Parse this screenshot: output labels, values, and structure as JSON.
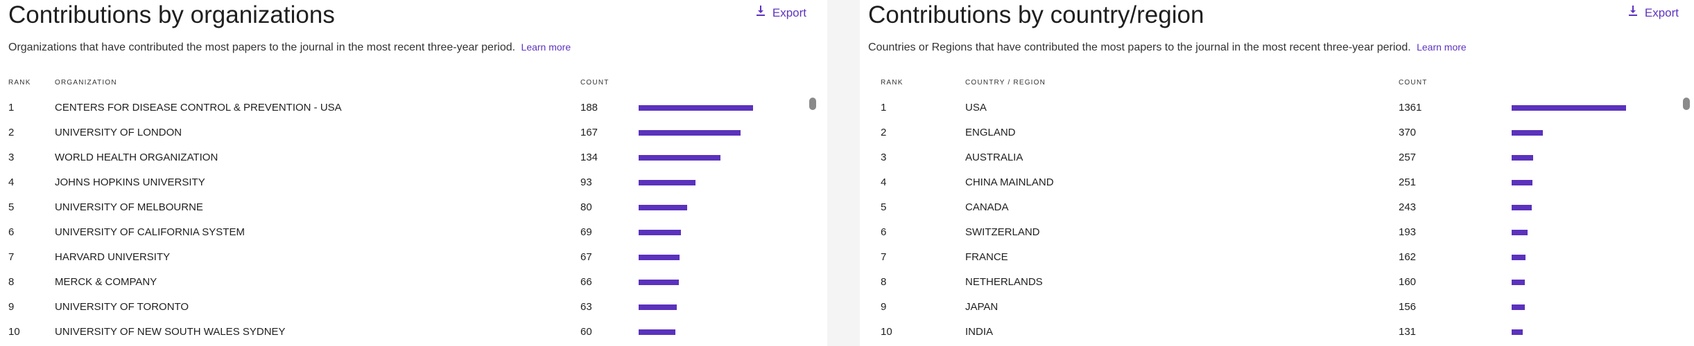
{
  "accent_color": "#5b32bd",
  "orgs": {
    "title": "Contributions by organizations",
    "export_label": "Export",
    "description": "Organizations that have contributed the most papers to the journal in the most recent three-year period.",
    "learn_more": "Learn more",
    "headers": {
      "rank": "RANK",
      "name": "ORGANIZATION",
      "count": "COUNT"
    },
    "max_count": 188,
    "rows": [
      {
        "rank": "1",
        "name": "CENTERS FOR DISEASE CONTROL & PREVENTION - USA",
        "count": "188",
        "value": 188
      },
      {
        "rank": "2",
        "name": "UNIVERSITY OF LONDON",
        "count": "167",
        "value": 167
      },
      {
        "rank": "3",
        "name": "WORLD HEALTH ORGANIZATION",
        "count": "134",
        "value": 134
      },
      {
        "rank": "4",
        "name": "JOHNS HOPKINS UNIVERSITY",
        "count": "93",
        "value": 93
      },
      {
        "rank": "5",
        "name": "UNIVERSITY OF MELBOURNE",
        "count": "80",
        "value": 80
      },
      {
        "rank": "6",
        "name": "UNIVERSITY OF CALIFORNIA SYSTEM",
        "count": "69",
        "value": 69
      },
      {
        "rank": "7",
        "name": "HARVARD UNIVERSITY",
        "count": "67",
        "value": 67
      },
      {
        "rank": "8",
        "name": "MERCK & COMPANY",
        "count": "66",
        "value": 66
      },
      {
        "rank": "9",
        "name": "UNIVERSITY OF TORONTO",
        "count": "63",
        "value": 63
      },
      {
        "rank": "10",
        "name": "UNIVERSITY OF NEW SOUTH WALES SYDNEY",
        "count": "60",
        "value": 60
      }
    ]
  },
  "countries": {
    "title": "Contributions by country/region",
    "export_label": "Export",
    "description": "Countries or Regions that have contributed the most papers to the journal in the most recent three-year period.",
    "learn_more": "Learn more",
    "headers": {
      "rank": "RANK",
      "name": "COUNTRY / REGION",
      "count": "COUNT"
    },
    "max_count": 1361,
    "rows": [
      {
        "rank": "1",
        "name": "USA",
        "count": "1361",
        "value": 1361
      },
      {
        "rank": "2",
        "name": "ENGLAND",
        "count": "370",
        "value": 370
      },
      {
        "rank": "3",
        "name": "AUSTRALIA",
        "count": "257",
        "value": 257
      },
      {
        "rank": "4",
        "name": "CHINA MAINLAND",
        "count": "251",
        "value": 251
      },
      {
        "rank": "5",
        "name": "CANADA",
        "count": "243",
        "value": 243
      },
      {
        "rank": "6",
        "name": "SWITZERLAND",
        "count": "193",
        "value": 193
      },
      {
        "rank": "7",
        "name": "FRANCE",
        "count": "162",
        "value": 162
      },
      {
        "rank": "8",
        "name": "NETHERLANDS",
        "count": "160",
        "value": 160
      },
      {
        "rank": "9",
        "name": "JAPAN",
        "count": "156",
        "value": 156
      },
      {
        "rank": "10",
        "name": "INDIA",
        "count": "131",
        "value": 131
      }
    ]
  }
}
